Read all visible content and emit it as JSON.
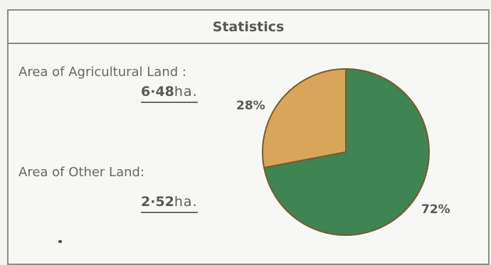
{
  "header": {
    "title": "Statistics"
  },
  "agricultural": {
    "label": "Area of Agricultural Land :",
    "value": "6·48",
    "unit": "ha."
  },
  "other": {
    "label": "Area of Other Land:",
    "value": "2·52",
    "unit": "ha."
  },
  "chart_data": {
    "type": "pie",
    "categories": [
      "Agricultural Land",
      "Other Land"
    ],
    "values": [
      72,
      28
    ],
    "labels": [
      "72%",
      "28%"
    ],
    "colors": [
      "#3f8453",
      "#d7a65a"
    ],
    "edge_color": "#7a5a2e"
  }
}
